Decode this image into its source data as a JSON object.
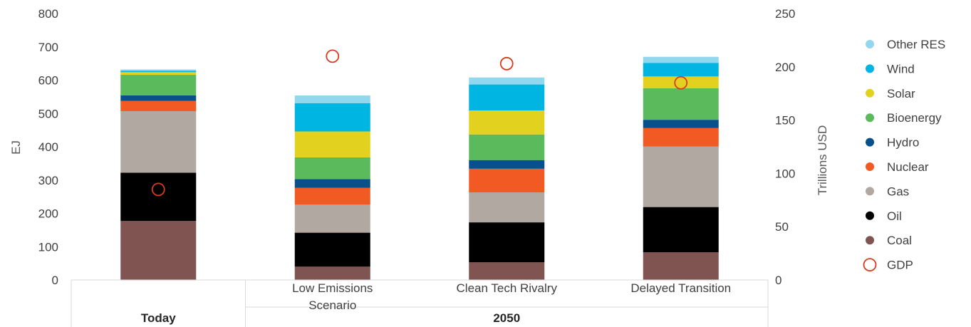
{
  "chart_data": {
    "type": "bar",
    "stacked": true,
    "categories": [
      "",
      "Low Emissions Scenario",
      "Clean Tech Rivalry",
      "Delayed Transition"
    ],
    "category_lines": [
      [
        ""
      ],
      [
        "Low Emissions",
        "Scenario"
      ],
      [
        "Clean Tech Rivalry"
      ],
      [
        "Delayed Transition"
      ]
    ],
    "groups": [
      {
        "label": "Today",
        "categories": [
          0
        ]
      },
      {
        "label": "2050",
        "categories": [
          1,
          2,
          3
        ]
      }
    ],
    "ylabel": "EJ",
    "ylim": [
      0,
      800
    ],
    "yticks": [
      "0",
      "100",
      "200",
      "300",
      "400",
      "500",
      "600",
      "700",
      "800"
    ],
    "ylabel_right": "Trillions USD",
    "ylim_right": [
      0,
      250
    ],
    "yticks_right": [
      "0",
      "50",
      "100",
      "150",
      "200",
      "250"
    ],
    "grid": false,
    "legend_position": "right",
    "series": [
      {
        "name": "Coal",
        "color": "#7f5451",
        "values": [
          177,
          40,
          53,
          83
        ]
      },
      {
        "name": "Oil",
        "color": "#000000",
        "values": [
          145,
          102,
          120,
          136
        ]
      },
      {
        "name": "Gas",
        "color": "#b1a8a1",
        "values": [
          185,
          84,
          90,
          182
        ]
      },
      {
        "name": "Nuclear",
        "color": "#f15a22",
        "values": [
          31,
          51,
          71,
          55
        ]
      },
      {
        "name": "Hydro",
        "color": "#08508c",
        "values": [
          16,
          26,
          26,
          25
        ]
      },
      {
        "name": "Bioenergy",
        "color": "#5bba5b",
        "values": [
          62,
          65,
          77,
          95
        ]
      },
      {
        "name": "Solar",
        "color": "#e2d21f",
        "values": [
          8,
          78,
          72,
          35
        ]
      },
      {
        "name": "Wind",
        "color": "#00b5e2",
        "values": [
          4,
          85,
          78,
          41
        ]
      },
      {
        "name": "Other RES",
        "color": "#92d7ed",
        "values": [
          4,
          23,
          21,
          18
        ]
      }
    ],
    "line_series": {
      "name": "GDP",
      "color": "#d93a1e",
      "axis": "right",
      "values": [
        85,
        210,
        203,
        185
      ]
    },
    "legend_order": [
      "Other RES",
      "Wind",
      "Solar",
      "Bioenergy",
      "Hydro",
      "Nuclear",
      "Gas",
      "Oil",
      "Coal",
      "GDP"
    ]
  }
}
